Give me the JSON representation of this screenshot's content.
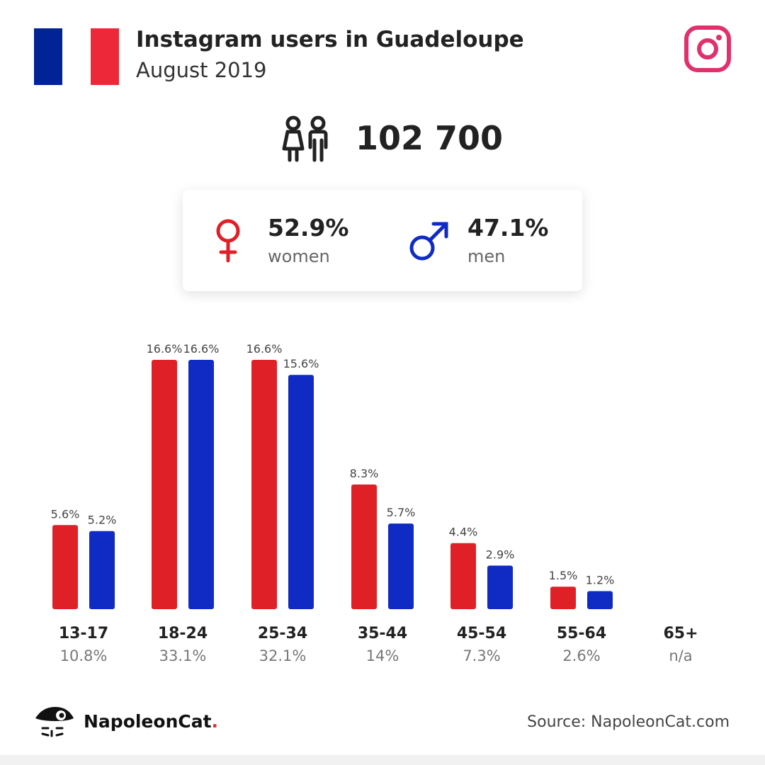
{
  "header": {
    "title": "Instagram users in Guadeloupe",
    "subtitle": "August 2019"
  },
  "total_users": "102 700",
  "gender": {
    "women_pct": "52.9%",
    "women_label": "women",
    "men_pct": "47.1%",
    "men_label": "men"
  },
  "colors": {
    "women": "#e02027",
    "men": "#0f2bc4",
    "flag_blue": "#002395",
    "flag_red": "#ed2939",
    "instagram": "#e1306c"
  },
  "chart_data": {
    "type": "bar",
    "categories": [
      "13-17",
      "18-24",
      "25-34",
      "35-44",
      "45-54",
      "55-64",
      "65+"
    ],
    "category_totals": [
      "10.8%",
      "33.1%",
      "32.1%",
      "14%",
      "7.3%",
      "2.6%",
      "n/a"
    ],
    "series": [
      {
        "name": "women",
        "values": [
          5.6,
          16.6,
          16.6,
          8.3,
          4.4,
          1.5,
          null
        ],
        "labels": [
          "5.6%",
          "16.6%",
          "16.6%",
          "8.3%",
          "4.4%",
          "1.5%",
          ""
        ]
      },
      {
        "name": "men",
        "values": [
          5.2,
          16.6,
          15.6,
          5.7,
          2.9,
          1.2,
          null
        ],
        "labels": [
          "5.2%",
          "16.6%",
          "15.6%",
          "5.7%",
          "2.9%",
          "1.2%",
          ""
        ]
      }
    ],
    "ylim": [
      0,
      16.6
    ],
    "grid": false
  },
  "footer": {
    "brand": "NapoleonCat",
    "brand_dot": ".",
    "source": "Source: NapoleonCat.com"
  }
}
